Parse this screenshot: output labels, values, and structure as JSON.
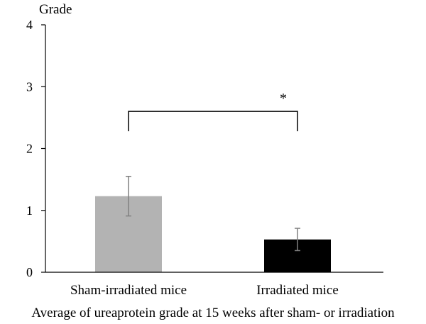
{
  "chart_data": {
    "type": "bar",
    "title": "",
    "ylabel": "Grade",
    "xlabel": "Average of ureaprotein grade at 15 weeks after sham- or irradiation",
    "ylim": [
      0,
      4
    ],
    "yticks": [
      0,
      1,
      2,
      3,
      4
    ],
    "categories": [
      "Sham-irradiated mice",
      "Irradiated mice"
    ],
    "values": [
      1.23,
      0.53
    ],
    "error": [
      0.32,
      0.18
    ],
    "colors": [
      "#b3b3b3",
      "#000000"
    ],
    "error_color": "#808080",
    "significance": {
      "between": [
        0,
        1
      ],
      "label": "*",
      "bracket_y": 2.6,
      "bracket_tip_y": 2.28
    },
    "grid": false,
    "legend": "none"
  }
}
